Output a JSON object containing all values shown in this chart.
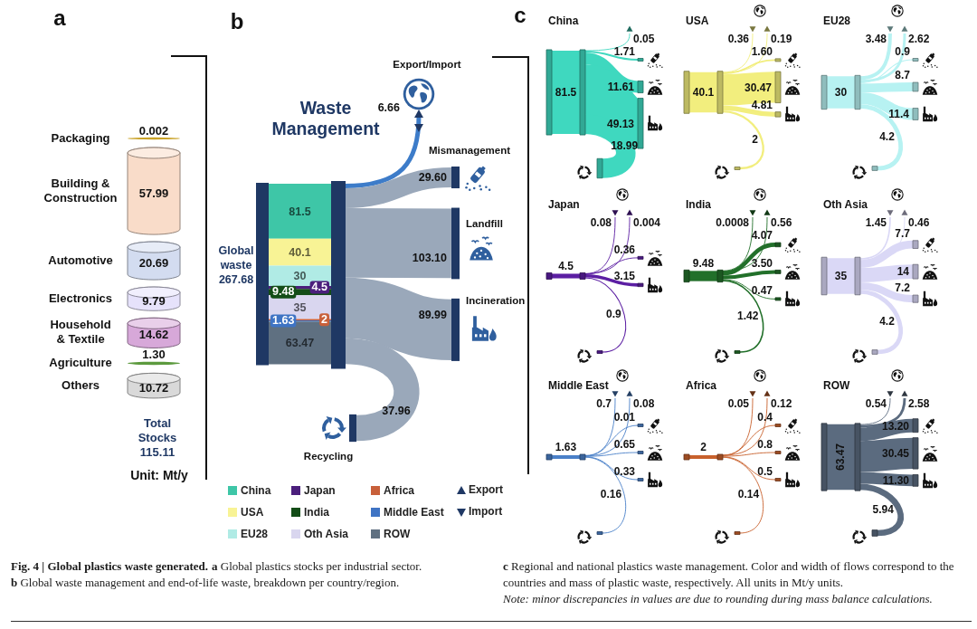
{
  "chart_data": [
    {
      "type": "other",
      "categories": [
        "Packaging",
        "Building & Construction",
        "Automotive",
        "Electronics",
        "Household & Textile",
        "Agriculture",
        "Others"
      ],
      "values": [
        0.002,
        57.99,
        20.69,
        9.79,
        14.62,
        1.3,
        10.72
      ],
      "value_labels": [
        "0.002",
        "57.99",
        "20.69",
        "9.79",
        "14.62",
        "1.30",
        "10.72"
      ],
      "colors": [
        "#c9a227",
        "#f9dcc9",
        "#d3dcf0",
        "#e6e2fb",
        "#d7a8d9",
        "#5c9a3e",
        "#d9d9d9"
      ],
      "annotations": [
        "a",
        "Total Stocks 115.11",
        "Unit: Mt/y"
      ]
    },
    {
      "type": "other",
      "title": "Waste Management",
      "categories": [
        "Global waste",
        "Export/Import",
        "Mismanagement",
        "Landfill",
        "Incineration",
        "Recycling"
      ],
      "series": [
        {
          "name": "China",
          "color": "#3ec6a7",
          "values": [
            81.5,
            null,
            null,
            null,
            null,
            null
          ]
        },
        {
          "name": "USA",
          "color": "#f8f395",
          "values": [
            40.1,
            null,
            null,
            null,
            null,
            null
          ]
        },
        {
          "name": "EU28",
          "color": "#b0ebe5",
          "values": [
            30,
            null,
            null,
            null,
            null,
            null
          ]
        },
        {
          "name": "Japan",
          "color": "#4b1f7c",
          "values": [
            4.5,
            null,
            null,
            null,
            null,
            null
          ]
        },
        {
          "name": "India",
          "color": "#134d17",
          "values": [
            9.48,
            null,
            null,
            null,
            null,
            null
          ]
        },
        {
          "name": "Oth Asia",
          "color": "#d9d6ef",
          "values": [
            35,
            null,
            null,
            null,
            null,
            null
          ]
        },
        {
          "name": "Africa",
          "color": "#c8603a",
          "values": [
            2,
            null,
            null,
            null,
            null,
            null
          ]
        },
        {
          "name": "Middle East",
          "color": "#3f74c4",
          "values": [
            1.63,
            null,
            null,
            null,
            null,
            null
          ]
        },
        {
          "name": "ROW",
          "color": "#5f7081",
          "values": [
            63.47,
            null,
            null,
            null,
            null,
            null
          ]
        },
        {
          "colors": [
            null,
            "#3d7cc9",
            "#9aa8ba",
            "#9aa8ba",
            "#9aa8ba",
            "#9aa8ba"
          ],
          "values": [
            null,
            6.66,
            29.6,
            103.1,
            89.99,
            37.96
          ],
          "value_labels": [
            null,
            "6.66",
            "29.60",
            "103.10",
            "89.99",
            "37.96"
          ]
        }
      ],
      "data_labels": true,
      "totals": [
        "267.68",
        null,
        null,
        null,
        null,
        null
      ],
      "legend": "bottom",
      "annotations": [
        "b",
        "Export",
        "Import"
      ]
    },
    {
      "type": "other",
      "categories": [
        "China"
      ],
      "series": [
        {
          "color": "#3fd8bf",
          "values": [
            null
          ]
        },
        {
          "color": "#3fd8bf",
          "values": [
            0.05
          ]
        },
        {
          "color": "#3fd8bf",
          "values": [
            1.71
          ]
        },
        {
          "color": "#3fd8bf",
          "values": [
            11.61
          ]
        },
        {
          "color": "#3fd8bf",
          "values": [
            49.13
          ]
        },
        {
          "color": "#3fd8bf",
          "values": [
            18.99
          ]
        }
      ],
      "data_labels": true,
      "totals": [
        "81.5"
      ],
      "annotations": [
        "c"
      ]
    },
    {
      "type": "other",
      "categories": [
        "USA"
      ],
      "series": [
        {
          "color": "#f2ee7e",
          "values": [
            0.36
          ]
        },
        {
          "color": "#f2ee7e",
          "values": [
            0.19
          ]
        },
        {
          "color": "#f2ee7e",
          "values": [
            1.6
          ],
          "value_labels": [
            "1.60"
          ]
        },
        {
          "color": "#f2ee7e",
          "values": [
            30.47
          ]
        },
        {
          "color": "#f2ee7e",
          "values": [
            4.81
          ]
        },
        {
          "color": "#f2ee7e",
          "values": [
            2
          ]
        }
      ],
      "data_labels": true,
      "totals": [
        "40.1"
      ]
    },
    {
      "type": "other",
      "categories": [
        "EU28"
      ],
      "series": [
        {
          "color": "#b7f2f2",
          "values": [
            3.48
          ]
        },
        {
          "color": "#b7f2f2",
          "values": [
            2.62
          ]
        },
        {
          "color": "#b7f2f2",
          "values": [
            0.9
          ]
        },
        {
          "color": "#b7f2f2",
          "values": [
            8.7
          ]
        },
        {
          "color": "#b7f2f2",
          "values": [
            11.4
          ]
        },
        {
          "color": "#b7f2f2",
          "values": [
            4.2
          ]
        }
      ],
      "data_labels": true,
      "totals": [
        "30"
      ]
    },
    {
      "type": "other",
      "categories": [
        "Japan"
      ],
      "series": [
        {
          "color": "#5c1fa3",
          "values": [
            0.08
          ]
        },
        {
          "color": "#5c1fa3",
          "values": [
            0.004
          ]
        },
        {
          "color": "#5c1fa3",
          "values": [
            null
          ]
        },
        {
          "color": "#5c1fa3",
          "values": [
            0.36
          ]
        },
        {
          "color": "#5c1fa3",
          "values": [
            3.15
          ]
        },
        {
          "color": "#5c1fa3",
          "values": [
            0.9
          ]
        }
      ],
      "data_labels": true,
      "totals": [
        "4.5"
      ]
    },
    {
      "type": "other",
      "categories": [
        "India"
      ],
      "series": [
        {
          "color": "#22702a",
          "values": [
            0.0008
          ]
        },
        {
          "color": "#22702a",
          "values": [
            0.56
          ]
        },
        {
          "color": "#22702a",
          "values": [
            4.07
          ]
        },
        {
          "color": "#22702a",
          "values": [
            3.5
          ],
          "value_labels": [
            "3.50"
          ]
        },
        {
          "color": "#22702a",
          "values": [
            0.47
          ]
        },
        {
          "color": "#22702a",
          "values": [
            1.42
          ]
        }
      ],
      "data_labels": true,
      "totals": [
        "9.48"
      ]
    },
    {
      "type": "other",
      "categories": [
        "Oth Asia"
      ],
      "series": [
        {
          "color": "#dad8f6",
          "values": [
            1.45
          ]
        },
        {
          "color": "#dad8f6",
          "values": [
            0.46
          ]
        },
        {
          "color": "#dad8f6",
          "values": [
            7.7
          ]
        },
        {
          "color": "#dad8f6",
          "values": [
            14
          ]
        },
        {
          "color": "#dad8f6",
          "values": [
            7.2
          ]
        },
        {
          "color": "#dad8f6",
          "values": [
            4.2
          ]
        }
      ],
      "data_labels": true,
      "totals": [
        "35"
      ]
    },
    {
      "type": "other",
      "categories": [
        "Middle East"
      ],
      "series": [
        {
          "color": "#4a80c8",
          "values": [
            0.7
          ]
        },
        {
          "color": "#4a80c8",
          "values": [
            0.08
          ]
        },
        {
          "color": "#4a80c8",
          "values": [
            0.01
          ]
        },
        {
          "color": "#4a80c8",
          "values": [
            0.65
          ]
        },
        {
          "color": "#4a80c8",
          "values": [
            0.33
          ]
        },
        {
          "color": "#4a80c8",
          "values": [
            0.16
          ]
        }
      ],
      "data_labels": true,
      "totals": [
        "1.63"
      ]
    },
    {
      "type": "other",
      "categories": [
        "Africa"
      ],
      "series": [
        {
          "color": "#c8612c",
          "values": [
            0.05
          ]
        },
        {
          "color": "#c8612c",
          "values": [
            0.12
          ]
        },
        {
          "color": "#c8612c",
          "values": [
            0.4
          ]
        },
        {
          "color": "#c8612c",
          "values": [
            0.8
          ]
        },
        {
          "color": "#c8612c",
          "values": [
            0.5
          ]
        },
        {
          "color": "#c8612c",
          "values": [
            0.14
          ]
        }
      ],
      "data_labels": true,
      "totals": [
        "2"
      ]
    },
    {
      "type": "other",
      "categories": [
        "ROW"
      ],
      "series": [
        {
          "color": "#5b6b7f",
          "values": [
            0.54
          ]
        },
        {
          "color": "#5b6b7f",
          "values": [
            2.58
          ]
        },
        {
          "color": "#5b6b7f",
          "values": [
            13.2
          ],
          "value_labels": [
            "13.20"
          ]
        },
        {
          "color": "#5b6b7f",
          "values": [
            30.45
          ]
        },
        {
          "color": "#5b6b7f",
          "values": [
            11.3
          ],
          "value_labels": [
            "11.30"
          ]
        },
        {
          "color": "#5b6b7f",
          "values": [
            5.94
          ]
        }
      ],
      "data_labels": true,
      "totals": [
        "63.47"
      ]
    },
    {
      "type": "other",
      "title": "Fig. 4 | Global plastics waste generated.",
      "annotations": [
        "a Global plastics stocks per industrial sector.",
        "b Global waste management and end-of-life waste, breakdown per country/region.",
        "c Regional and national plastics waste management. Color and width of flows correspond to the countries and mass of plastic waste, respectively. All units in Mt/y units.",
        "Note: minor discrepancies in values are due to rounding during mass balance calculations."
      ]
    }
  ]
}
